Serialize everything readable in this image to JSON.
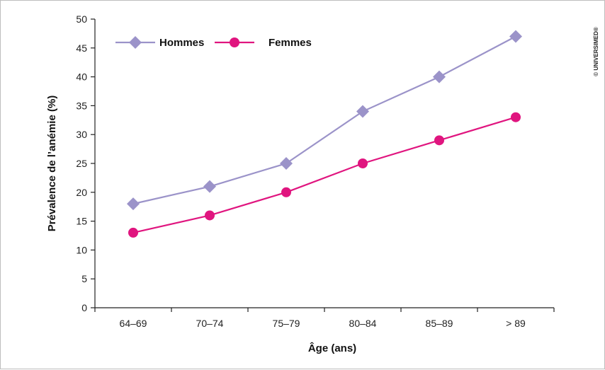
{
  "chart_data": {
    "type": "line",
    "categories": [
      "64–69",
      "70–74",
      "75–79",
      "80–84",
      "85–89",
      "> 89"
    ],
    "series": [
      {
        "name": "Hommes",
        "values": [
          18,
          21,
          25,
          34,
          40,
          47
        ],
        "color": "#9b93c9",
        "marker": "diamond"
      },
      {
        "name": "Femmes",
        "values": [
          13,
          16,
          20,
          25,
          29,
          33
        ],
        "color": "#e0157f",
        "marker": "circle"
      }
    ],
    "xlabel": "Âge (ans)",
    "ylabel": "Prévalence de l’anémie (%)",
    "ylim": [
      0,
      50
    ],
    "yticks": [
      0,
      5,
      10,
      15,
      20,
      25,
      30,
      35,
      40,
      45,
      50
    ],
    "grid": false,
    "legend_position": "top-left"
  },
  "copyright": "© UNIVERSIMED®"
}
